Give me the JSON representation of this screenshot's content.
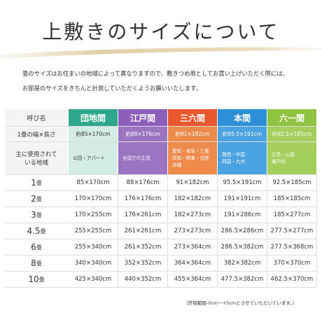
{
  "header": {
    "title": "上敷きのサイズについて"
  },
  "intro": [
    "畳のサイズはお住まいの地域によって異なりますので、敷きつめ用としてお買い上げいただく際には、",
    "お部屋のサイズをきちんと計測していただくようお願いいたします。"
  ],
  "table": {
    "corner": "呼び名",
    "columns": [
      {
        "name": "団地間",
        "color": "#2ea88c",
        "tint": "#d3ece4"
      },
      {
        "name": "江戸間",
        "color": "#8c5fba",
        "tint": "#9b74c2"
      },
      {
        "name": "三六間",
        "color": "#e9572f",
        "tint": "#ee8a4a"
      },
      {
        "name": "本間",
        "color": "#2d8fd5",
        "tint": "#4aa3e0"
      },
      {
        "name": "六一間",
        "color": "#8ec43f",
        "tint": "#a4cf5c"
      }
    ],
    "size_label": "1畳の幅×長さ",
    "sizes": [
      "約85×170cm",
      "約88×176cm",
      "約91×182cm",
      "約95.5×191cm",
      "約92.5×185cm"
    ],
    "region_label": [
      "主に使用されて",
      "いる地域"
    ],
    "regions": [
      [
        "公団・アパート"
      ],
      [
        "全国での主流"
      ],
      [
        "愛知・岐阜・三重",
        "高知・関東・北陸",
        "沖縄"
      ],
      [
        "関西・中国",
        "四国・九州"
      ],
      [
        "広島・山陰",
        "瀬戸内"
      ]
    ],
    "rows": [
      {
        "number": "1",
        "unit": "畳",
        "cells": [
          "85×170cm",
          "88×176cm",
          "91×182cm",
          "95.5×191cm",
          "92.5×185cm"
        ]
      },
      {
        "number": "2",
        "unit": "畳",
        "cells": [
          "170×170cm",
          "176×176cm",
          "182×182cm",
          "191×191cm",
          "185×185cm"
        ]
      },
      {
        "number": "3",
        "unit": "畳",
        "cells": [
          "170×255cm",
          "176×261cm",
          "182×273cm",
          "191×286cm",
          "185×277cm"
        ]
      },
      {
        "number": "4.5",
        "unit": "畳",
        "cells": [
          "255×255cm",
          "261×261cm",
          "273×273cm",
          "286.5×286cm",
          "277.5×277cm"
        ]
      },
      {
        "number": "6",
        "unit": "畳",
        "cells": [
          "255×340cm",
          "261×352cm",
          "273×364cm",
          "286.5×382cm",
          "277.5×368cm"
        ]
      },
      {
        "number": "8",
        "unit": "畳",
        "cells": [
          "340×340cm",
          "352×352cm",
          "364×364cm",
          "382×382cm",
          "370×370cm"
        ]
      },
      {
        "number": "10",
        "unit": "畳",
        "cells": [
          "425×340cm",
          "440×352cm",
          "455×364cm",
          "477.5×382cm",
          "462.5×370cm"
        ]
      }
    ]
  },
  "footnote": "（許容範囲-0cm～+5cmとさせていただいています。）"
}
